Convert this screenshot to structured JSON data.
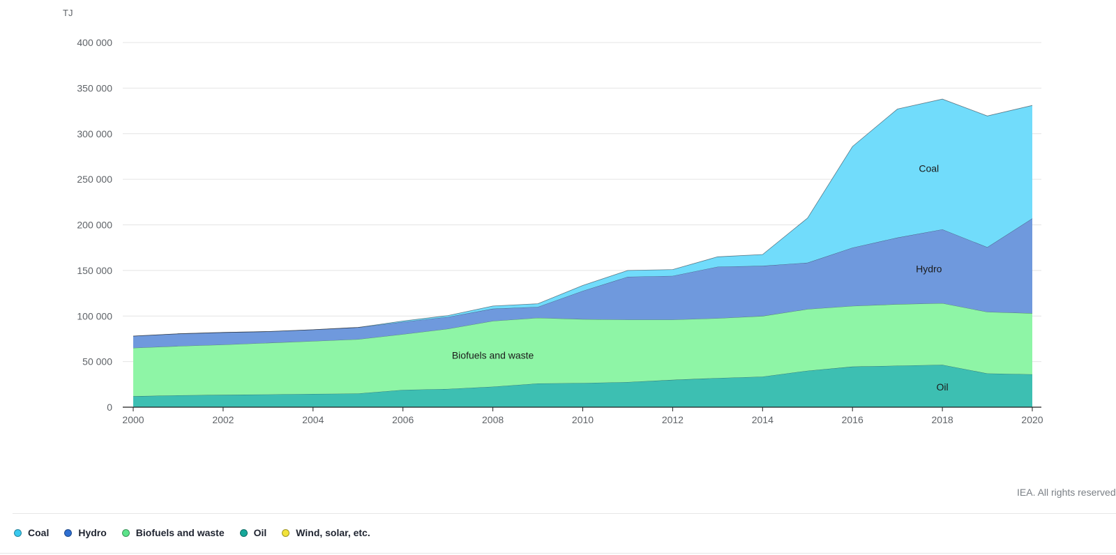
{
  "chart_data": {
    "type": "area",
    "stacked": true,
    "unit": "TJ",
    "x": [
      2000,
      2001,
      2002,
      2003,
      2004,
      2005,
      2006,
      2007,
      2008,
      2009,
      2010,
      2011,
      2012,
      2013,
      2014,
      2015,
      2016,
      2017,
      2018,
      2019,
      2020
    ],
    "ylim": [
      0,
      400000
    ],
    "yticks": [
      0,
      50000,
      100000,
      150000,
      200000,
      250000,
      300000,
      350000,
      400000
    ],
    "ytick_labels": [
      "0",
      "50 000",
      "100 000",
      "150 000",
      "200 000",
      "250 000",
      "300 000",
      "350 000",
      "400 000"
    ],
    "xticks": [
      2000,
      2002,
      2004,
      2006,
      2008,
      2010,
      2012,
      2014,
      2016,
      2018,
      2020
    ],
    "xtick_labels": [
      "2000",
      "2002",
      "2004",
      "2006",
      "2008",
      "2010",
      "2012",
      "2014",
      "2016",
      "2018",
      "2020"
    ],
    "grid": true,
    "legend_position": "bottom-left",
    "series": [
      {
        "name": "Oil",
        "color": "#3dbfb2",
        "values": [
          12000,
          13000,
          13500,
          14000,
          14500,
          15000,
          19000,
          20000,
          22500,
          26000,
          26500,
          27500,
          30000,
          32000,
          33500,
          40000,
          44500,
          45500,
          46500,
          37000,
          36000
        ]
      },
      {
        "name": "Biofuels and waste",
        "color": "#8ef5a6",
        "values": [
          53000,
          54000,
          55000,
          56500,
          58000,
          59500,
          61000,
          66000,
          72000,
          72000,
          70000,
          68500,
          66000,
          65500,
          66500,
          67500,
          66500,
          67500,
          67500,
          67500,
          67000
        ]
      },
      {
        "name": "Hydro",
        "color": "#6f99dd",
        "values": [
          13000,
          13500,
          13500,
          12500,
          12500,
          13000,
          13500,
          13000,
          13500,
          12000,
          31000,
          47000,
          48000,
          56500,
          55000,
          51000,
          64000,
          73000,
          81000,
          71000,
          104000
        ]
      },
      {
        "name": "Coal",
        "color": "#71dcfb",
        "values": [
          0,
          0,
          0,
          0,
          0,
          0,
          1000,
          1500,
          3000,
          3500,
          6000,
          7000,
          7000,
          11000,
          12500,
          49000,
          111000,
          141000,
          143000,
          144000,
          124000
        ]
      },
      {
        "name": "Wind, solar, etc.",
        "color": "#f2e33a",
        "values": [
          0,
          0,
          0,
          0,
          0,
          0,
          0,
          0,
          0,
          0,
          0,
          0,
          0,
          0,
          0,
          0,
          0,
          0,
          0,
          0,
          0
        ]
      }
    ],
    "area_labels": [
      {
        "text": "Coal",
        "x": 2017.7,
        "y": 262000
      },
      {
        "text": "Hydro",
        "x": 2017.7,
        "y": 152000
      },
      {
        "text": "Biofuels and waste",
        "x": 2008.0,
        "y": 57000
      },
      {
        "text": "Oil",
        "x": 2018.0,
        "y": 22000
      }
    ]
  },
  "legend": {
    "items": [
      {
        "label": "Coal",
        "color": "#39c9ef"
      },
      {
        "label": "Hydro",
        "color": "#2f6fd1"
      },
      {
        "label": "Biofuels and waste",
        "color": "#5ce38a"
      },
      {
        "label": "Oil",
        "color": "#16a89a"
      },
      {
        "label": "Wind, solar, etc.",
        "color": "#f2e33a"
      }
    ]
  },
  "credit": "IEA. All rights reserved."
}
